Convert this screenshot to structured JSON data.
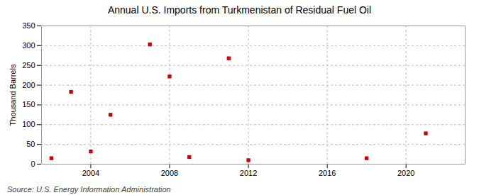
{
  "chart_data": {
    "type": "scatter",
    "title": "Annual U.S. Imports from Turkmenistan of Residual Fuel Oil",
    "ylabel": "Thousand Barrels",
    "annotations": [
      "Source: U.S. Energy Information Administration"
    ],
    "x": [
      2002,
      2003,
      2004,
      2005,
      2007,
      2008,
      2009,
      2011,
      2012,
      2018,
      2021
    ],
    "values": [
      15,
      183,
      32,
      125,
      303,
      222,
      18,
      268,
      10,
      15,
      78
    ],
    "color": "#cc0000",
    "marker": "square",
    "xlim": [
      2001.5,
      2023
    ],
    "ylim": [
      0,
      350
    ],
    "xticks": [
      2004,
      2008,
      2012,
      2016,
      2020
    ],
    "yticks": [
      0,
      50,
      100,
      150,
      200,
      250,
      300,
      350
    ],
    "grid": true
  }
}
